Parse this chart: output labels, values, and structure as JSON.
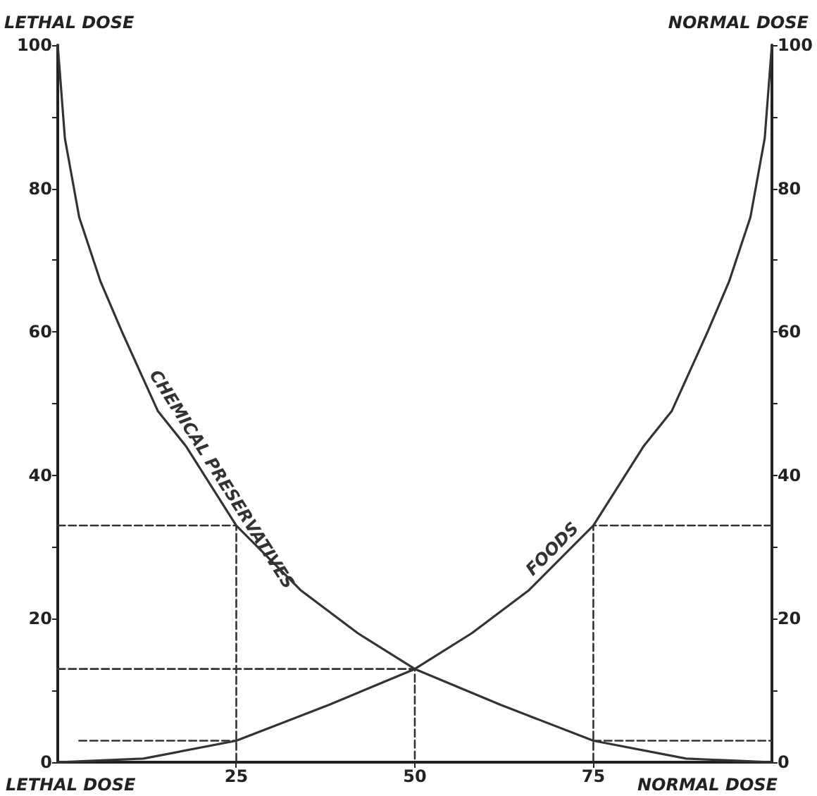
{
  "chart_data": {
    "type": "line",
    "ylabel": "LETHAL DOSE",
    "y2label": "NORMAL DOSE",
    "annotations": [
      "LETHAL DOSE",
      "NORMAL DOSE"
    ],
    "xlim": [
      0,
      100
    ],
    "xticks": [
      25,
      50,
      75
    ],
    "ylim": [
      0,
      100
    ],
    "yticks": [
      0,
      {
        "value": 10,
        "label": null
      },
      20,
      {
        "value": 30,
        "label": null
      },
      40,
      {
        "value": 50,
        "label": null
      },
      60,
      {
        "value": 70,
        "label": null
      },
      80,
      {
        "value": 90,
        "label": null
      },
      100
    ],
    "y2lim": [
      0,
      100
    ],
    "y2ticks": [
      0,
      {
        "value": 10,
        "label": null
      },
      20,
      {
        "value": 30,
        "label": null
      },
      40,
      {
        "value": 50,
        "label": null
      },
      60,
      {
        "value": 70,
        "label": null
      },
      80,
      {
        "value": 90,
        "label": null
      },
      100
    ],
    "grid": false,
    "legend": false,
    "marker": "none",
    "line_style": "solid",
    "series": [
      {
        "name": "CHEMICAL PRESERVATIVES",
        "color": "#333333",
        "x": [
          0,
          1,
          3,
          6,
          9,
          14,
          18,
          25,
          34,
          42,
          50,
          62,
          75,
          88,
          100
        ],
        "values": [
          100,
          87,
          76,
          67,
          60,
          49,
          44,
          33,
          24,
          18,
          13,
          8,
          3,
          0.5,
          0
        ]
      },
      {
        "name": "FOODS",
        "color": "#333333",
        "x": [
          0,
          12,
          25,
          38,
          50,
          58,
          66,
          75,
          82,
          86,
          91,
          94,
          97,
          99,
          100
        ],
        "values": [
          0,
          0.5,
          3,
          8,
          13,
          18,
          24,
          33,
          44,
          49,
          60,
          67,
          76,
          87,
          100
        ]
      },
      {
        "color": "#333333",
        "line_style": "dashed",
        "x": [
          0,
          25,
          25
        ],
        "values": [
          33,
          33,
          0
        ]
      },
      {
        "color": "#333333",
        "line_style": "dashed",
        "x": [
          0,
          50,
          50
        ],
        "values": [
          13,
          13,
          0
        ]
      },
      {
        "color": "#333333",
        "line_style": "dashed",
        "x": [
          3,
          25
        ],
        "values": [
          3,
          3
        ]
      },
      {
        "color": "#333333",
        "line_style": "dashed",
        "x": [
          100,
          75,
          75
        ],
        "values": [
          33,
          33,
          0
        ]
      },
      {
        "color": "#333333",
        "line_style": "dashed",
        "x": [
          75,
          100
        ],
        "values": [
          3,
          3
        ]
      }
    ]
  }
}
